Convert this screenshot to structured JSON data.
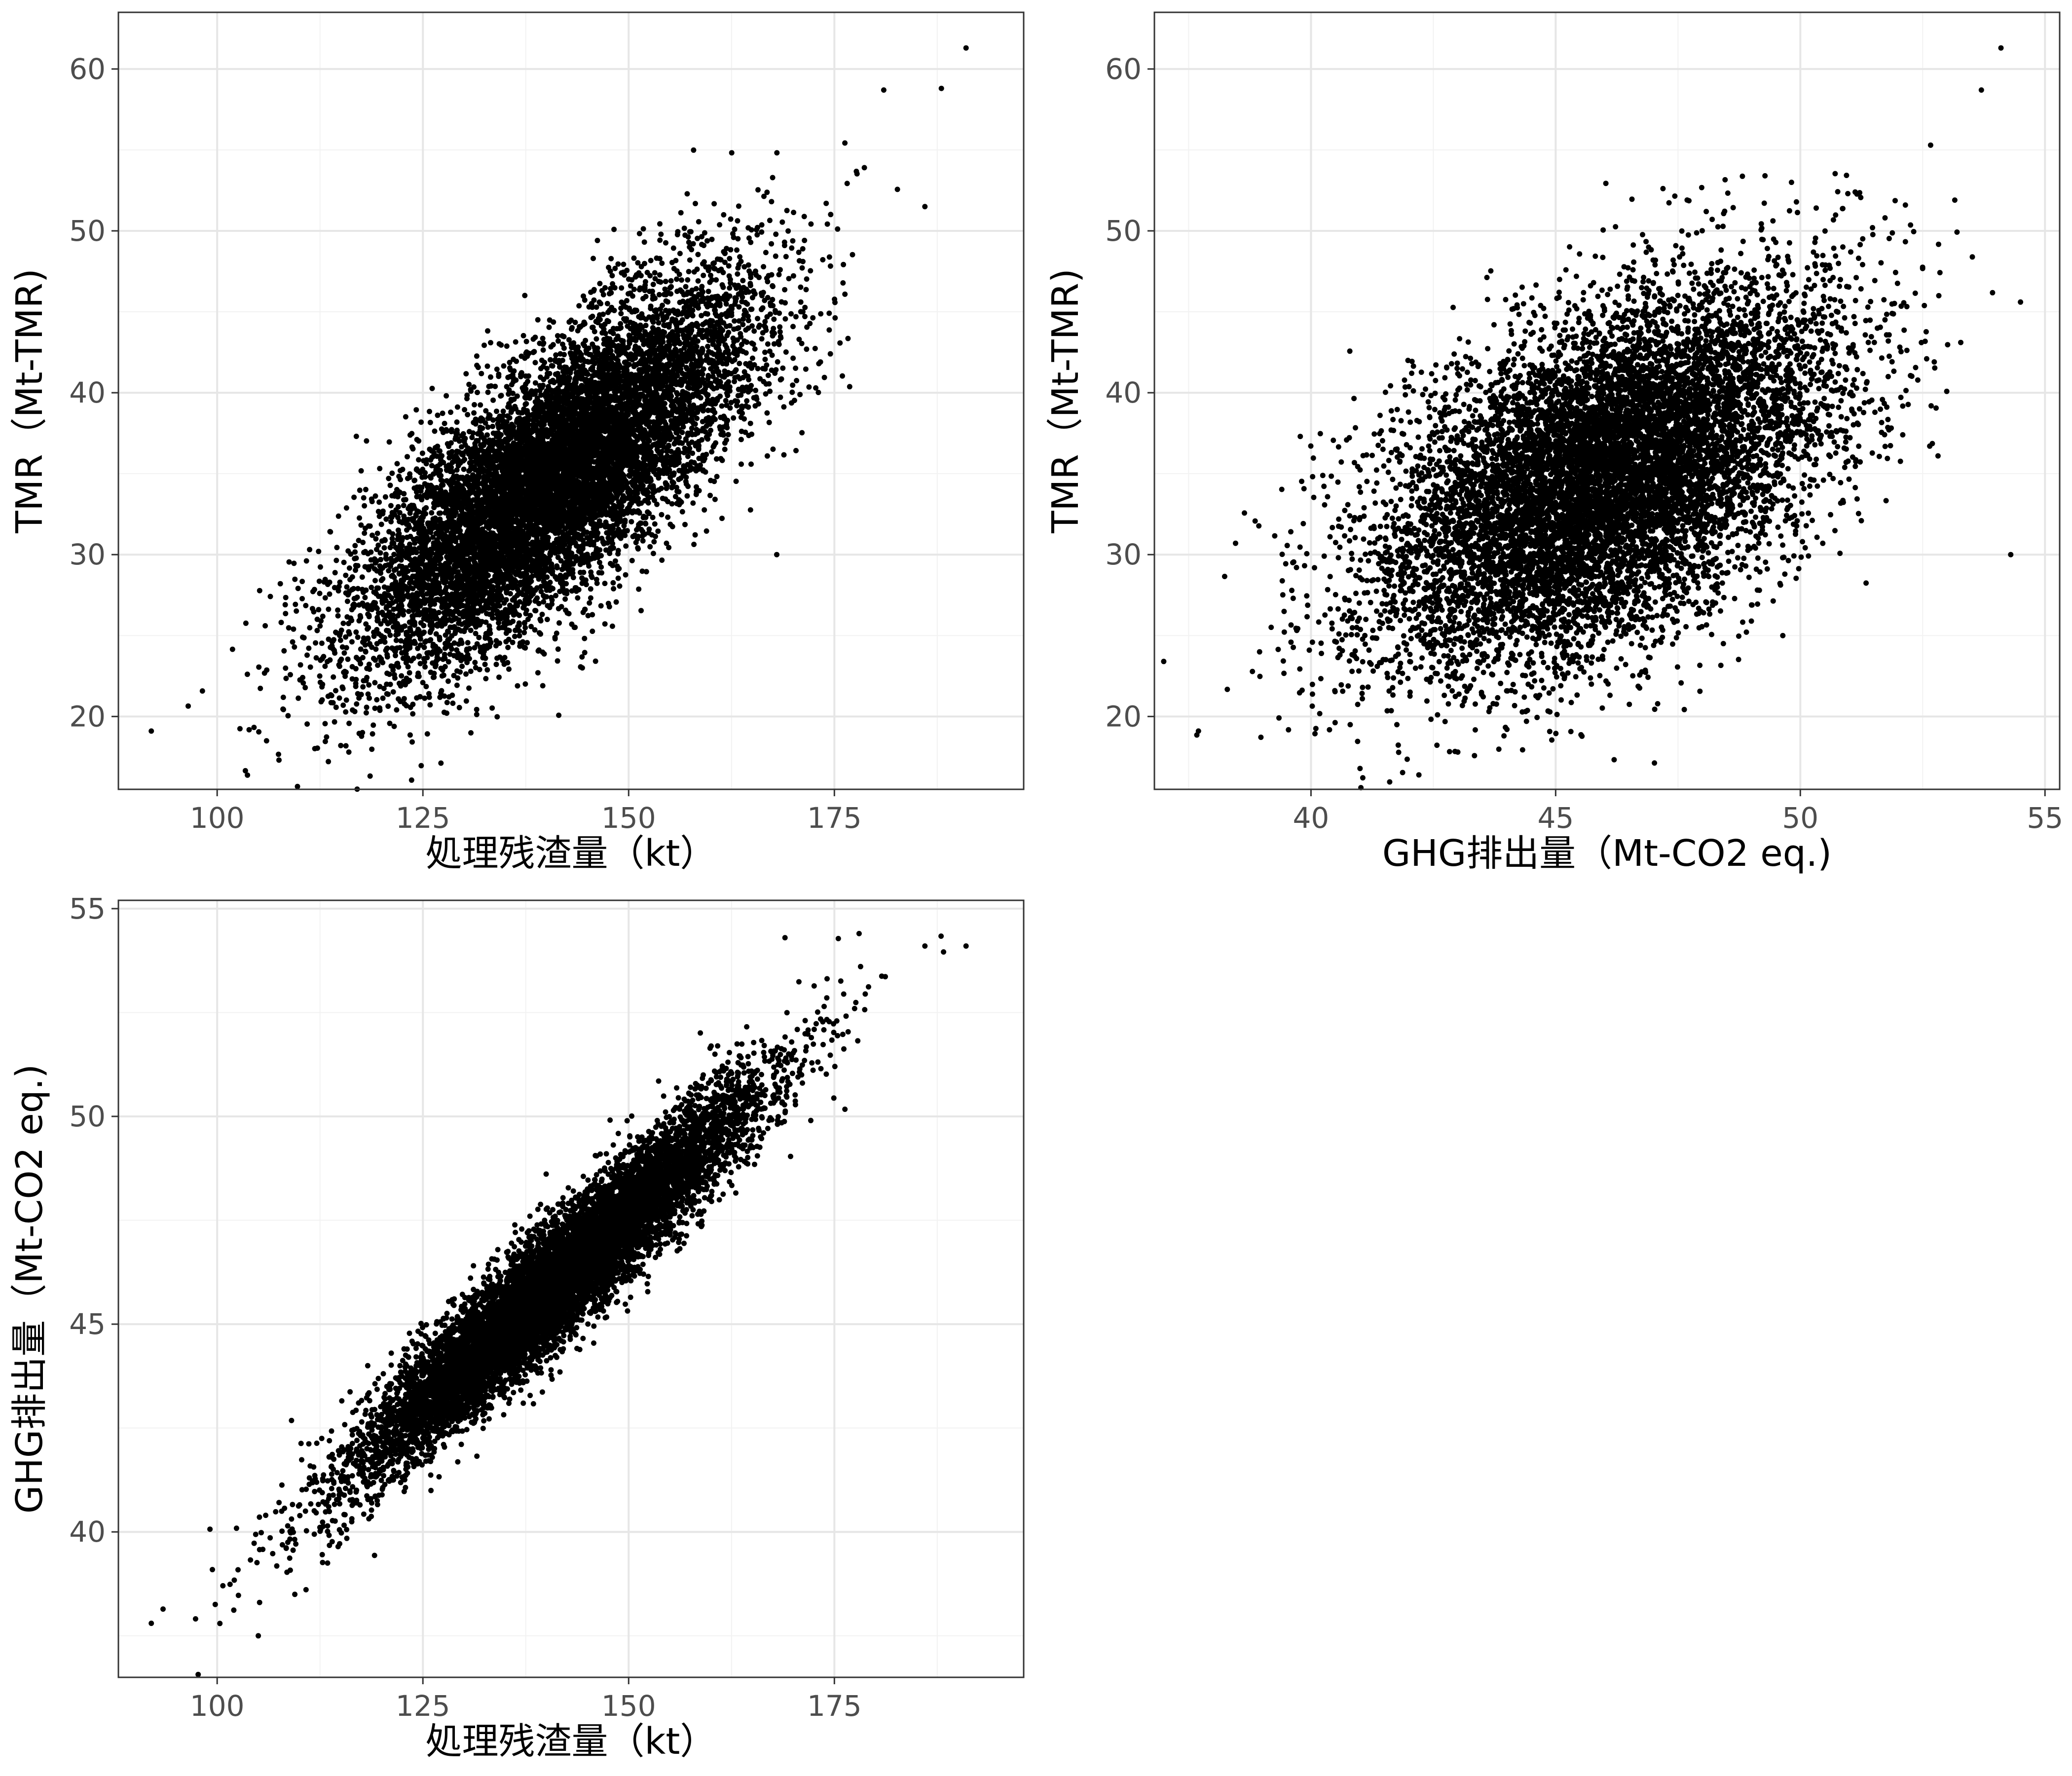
{
  "chart_data": [
    {
      "type": "scatter",
      "title": "",
      "xlabel": "処理残渣量（kt）",
      "ylabel": "TMR（Mt-TMR)",
      "xlim": [
        88,
        198
      ],
      "ylim": [
        15.5,
        63.5
      ],
      "xticks": [
        100,
        125,
        150,
        175
      ],
      "yticks": [
        20,
        30,
        40,
        50,
        60
      ],
      "xtick_labels": [
        "100",
        "125",
        "150",
        "175"
      ],
      "ytick_labels": [
        "20",
        "30",
        "40",
        "50",
        "60"
      ],
      "grid": true,
      "point_color": "#000000",
      "n_points": 10000,
      "distribution": {
        "x_mean": 141,
        "x_sd": 12,
        "y_mean": 34.8,
        "y_sd": 5.8,
        "correlation": 0.75
      },
      "points": [
        {
          "x": 92,
          "y": 19.1
        },
        {
          "x": 116,
          "y": 17.8
        },
        {
          "x": 191,
          "y": 61.3
        },
        {
          "x": 181,
          "y": 58.7
        },
        {
          "x": 188,
          "y": 58.8
        },
        {
          "x": 186,
          "y": 51.5
        },
        {
          "x": 168,
          "y": 30.0
        },
        {
          "x": 106,
          "y": 18.5
        }
      ]
    },
    {
      "type": "scatter",
      "title": "",
      "xlabel": "GHG排出量（Mt-CO2 eq.)",
      "ylabel": "TMR（Mt-TMR)",
      "xlim": [
        36.8,
        55.3
      ],
      "ylim": [
        15.5,
        63.5
      ],
      "xticks": [
        40,
        45,
        50,
        55
      ],
      "yticks": [
        20,
        30,
        40,
        50,
        60
      ],
      "xtick_labels": [
        "40",
        "45",
        "50",
        "55"
      ],
      "ytick_labels": [
        "20",
        "30",
        "40",
        "50",
        "60"
      ],
      "grid": true,
      "point_color": "#000000",
      "n_points": 10000,
      "distribution": {
        "x_mean": 46.0,
        "x_sd": 2.3,
        "y_mean": 34.8,
        "y_sd": 5.8,
        "correlation": 0.5
      },
      "points": [
        {
          "x": 54.1,
          "y": 61.3
        },
        {
          "x": 53.7,
          "y": 58.7
        },
        {
          "x": 54.3,
          "y": 30.0
        },
        {
          "x": 54.5,
          "y": 45.6
        },
        {
          "x": 37.7,
          "y": 19.1
        },
        {
          "x": 43.0,
          "y": 17.8
        }
      ]
    },
    {
      "type": "scatter",
      "title": "",
      "xlabel": "処理残渣量（kt）",
      "ylabel": "GHG排出量（Mt-CO2 eq.)",
      "xlim": [
        88,
        198
      ],
      "ylim": [
        36.5,
        55.2
      ],
      "xticks": [
        100,
        125,
        150,
        175
      ],
      "yticks": [
        40,
        45,
        50,
        55
      ],
      "xtick_labels": [
        "100",
        "125",
        "150",
        "175"
      ],
      "ytick_labels": [
        "40",
        "45",
        "50",
        "55"
      ],
      "grid": true,
      "point_color": "#000000",
      "n_points": 10000,
      "distribution": {
        "x_mean": 141,
        "x_sd": 12,
        "y_mean": 46.0,
        "y_sd": 2.3,
        "correlation": 0.95
      },
      "points": [
        {
          "x": 92,
          "y": 37.8
        },
        {
          "x": 191,
          "y": 54.1
        },
        {
          "x": 186,
          "y": 54.1
        },
        {
          "x": 178,
          "y": 54.4
        },
        {
          "x": 169,
          "y": 54.3
        },
        {
          "x": 105,
          "y": 37.5
        }
      ]
    }
  ]
}
